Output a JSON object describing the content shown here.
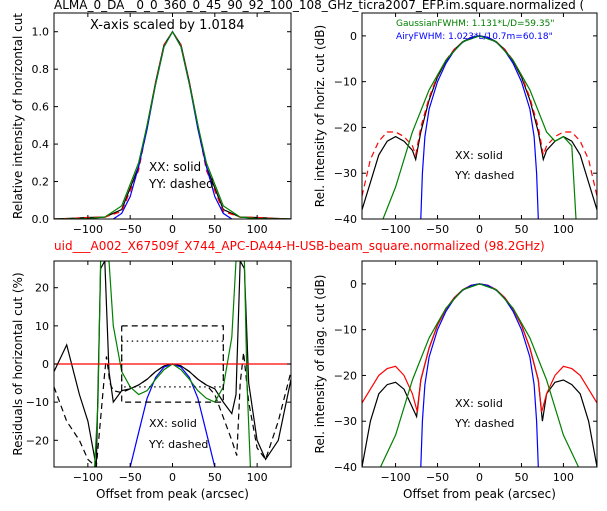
{
  "page_title": "ALMA_0_DA__0_0_360_0_45_90_92_100_108_GHz_ticra2007_EFP.im.square.normalized (",
  "subtitle": "uid___A002_X67509f_X744_APC-DA44-H-USB-beam_square.normalized (98.2GHz)",
  "colors": {
    "black": "#000000",
    "red": "#ff0000",
    "blue": "#0000ff",
    "green": "#008000"
  },
  "chart_data": [
    {
      "id": "p1",
      "type": "line",
      "xlim": [
        -140,
        140
      ],
      "ylim": [
        0,
        1.1
      ],
      "xticks": [
        -100,
        -50,
        0,
        50,
        100
      ],
      "xtick_labels": [
        "−100",
        "−50",
        "0",
        "50",
        "100"
      ],
      "yticks": [
        0.0,
        0.2,
        0.4,
        0.6,
        0.8,
        1.0
      ],
      "ytick_labels": [
        "0.0",
        "0.2",
        "0.4",
        "0.6",
        "0.8",
        "1.0"
      ],
      "ylabel": "Relative intensity of horizontal cut",
      "xlabel": "",
      "annotations": [
        "X-axis scaled by 1.0184",
        "XX: solid",
        "YY: dashed"
      ],
      "series": [
        {
          "color": "#000000",
          "style": "solid",
          "x": [
            -140,
            -120,
            -100,
            -80,
            -60,
            -40,
            -30,
            -20,
            -10,
            0,
            10,
            20,
            30,
            40,
            60,
            80,
            100,
            120,
            140
          ],
          "y": [
            0,
            0.003,
            0.008,
            0.01,
            0.05,
            0.28,
            0.5,
            0.73,
            0.93,
            1.0,
            0.93,
            0.73,
            0.5,
            0.28,
            0.05,
            0.01,
            0.008,
            0.003,
            0
          ]
        },
        {
          "color": "#ff0000",
          "style": "dashed",
          "x": [
            -140,
            -120,
            -100,
            -80,
            -60,
            -40,
            -30,
            -20,
            -10,
            0,
            10,
            20,
            30,
            40,
            60,
            80,
            100,
            120,
            140
          ],
          "y": [
            0,
            0.003,
            0.008,
            0.01,
            0.04,
            0.26,
            0.49,
            0.73,
            0.93,
            1.0,
            0.93,
            0.73,
            0.49,
            0.26,
            0.04,
            0.01,
            0.008,
            0.003,
            0
          ]
        },
        {
          "color": "#0000ff",
          "style": "solid",
          "x": [
            -70,
            -60,
            -50,
            -40,
            -30,
            -20,
            -10,
            0,
            10,
            20,
            30,
            40,
            50,
            60,
            70
          ],
          "y": [
            0.0,
            0.03,
            0.12,
            0.28,
            0.48,
            0.72,
            0.92,
            1.0,
            0.92,
            0.72,
            0.48,
            0.28,
            0.12,
            0.03,
            0.0
          ]
        },
        {
          "color": "#008000",
          "style": "solid",
          "x": [
            -140,
            -100,
            -80,
            -60,
            -40,
            -30,
            -20,
            -10,
            0,
            10,
            20,
            30,
            40,
            60,
            80,
            100,
            140
          ],
          "y": [
            0,
            0.002,
            0.01,
            0.07,
            0.3,
            0.5,
            0.72,
            0.92,
            1.0,
            0.92,
            0.72,
            0.5,
            0.3,
            0.07,
            0.01,
            0.002,
            0
          ]
        }
      ]
    },
    {
      "id": "p2",
      "type": "line",
      "xlim": [
        -140,
        140
      ],
      "ylim": [
        -40,
        5
      ],
      "xticks": [
        -100,
        -50,
        0,
        50,
        100
      ],
      "xtick_labels": [
        "−100",
        "−50",
        "0",
        "50",
        "100"
      ],
      "yticks": [
        -40,
        -30,
        -20,
        -10,
        0
      ],
      "ytick_labels": [
        "−40",
        "−30",
        "−20",
        "−10",
        "0"
      ],
      "ylabel": "Rel. intensity of horiz. cut (dB)",
      "xlabel": "",
      "annotations": [
        "GaussianFWHM: 1.131*L/D=59.35\"",
        "AiryFWHM: 1.023*L/10.7m=60.18\"",
        "XX: solid",
        "YY: dashed"
      ],
      "series": [
        {
          "color": "#000000",
          "style": "solid",
          "x": [
            -140,
            -130,
            -120,
            -110,
            -100,
            -90,
            -80,
            -76,
            -70,
            -60,
            -50,
            -40,
            -30,
            -20,
            -10,
            0,
            10,
            20,
            30,
            40,
            50,
            60,
            70,
            76,
            80,
            90,
            100,
            110,
            120,
            130,
            140
          ],
          "y": [
            -38,
            -32,
            -26,
            -23,
            -22,
            -23,
            -25,
            -27,
            -21,
            -14,
            -9,
            -5.5,
            -3,
            -1.3,
            -0.3,
            0,
            -0.3,
            -1.3,
            -3,
            -5.5,
            -9,
            -14,
            -21,
            -27,
            -25,
            -23,
            -22,
            -23,
            -26,
            -32,
            -38
          ]
        },
        {
          "color": "#ff0000",
          "style": "dashed",
          "x": [
            -140,
            -130,
            -120,
            -110,
            -100,
            -90,
            -80,
            -76,
            -70,
            -60,
            -50,
            -40,
            -30,
            -20,
            -10,
            0,
            10,
            20,
            30,
            40,
            50,
            60,
            70,
            76,
            80,
            90,
            100,
            110,
            120,
            130,
            140
          ],
          "y": [
            -35,
            -27,
            -23,
            -21,
            -21,
            -22,
            -24,
            -26,
            -20,
            -13.5,
            -8.7,
            -5.3,
            -2.9,
            -1.3,
            -0.3,
            0,
            -0.3,
            -1.3,
            -2.9,
            -5.3,
            -8.7,
            -13.5,
            -20,
            -26,
            -24,
            -22,
            -21,
            -21,
            -23,
            -27,
            -35
          ]
        },
        {
          "color": "#0000ff",
          "style": "solid",
          "x": [
            -70,
            -68,
            -65,
            -60,
            -50,
            -40,
            -30,
            -20,
            -10,
            0,
            10,
            20,
            30,
            40,
            50,
            60,
            65,
            68,
            70
          ],
          "y": [
            -40,
            -30,
            -22,
            -16,
            -10,
            -6,
            -3.2,
            -1.4,
            -0.35,
            0,
            -0.35,
            -1.4,
            -3.2,
            -6,
            -10,
            -16,
            -22,
            -30,
            -40
          ]
        },
        {
          "color": "#008000",
          "style": "solid",
          "x": [
            -115,
            -100,
            -80,
            -60,
            -40,
            -20,
            0,
            20,
            40,
            60,
            80,
            90,
            100,
            110,
            115
          ],
          "y": [
            -40,
            -33,
            -21,
            -11.8,
            -5.3,
            -1.3,
            0,
            -1.3,
            -5.3,
            -11.8,
            -21,
            -23,
            -22,
            -24,
            -40
          ]
        }
      ]
    },
    {
      "id": "p3",
      "type": "line",
      "xlim": [
        -140,
        140
      ],
      "ylim": [
        -27,
        27
      ],
      "xticks": [
        -100,
        -50,
        0,
        50,
        100
      ],
      "xtick_labels": [
        "−100",
        "−50",
        "0",
        "50",
        "100"
      ],
      "yticks": [
        -20,
        -10,
        0,
        10,
        20
      ],
      "ytick_labels": [
        "−20",
        "−10",
        "0",
        "10",
        "20"
      ],
      "ylabel": "Residuals of horizontal cut (%)",
      "xlabel": "Offset from peak (arcsec)",
      "annotations": [
        "XX: solid",
        "YY: dashed"
      ],
      "series": [
        {
          "color": "#000000",
          "style": "solid",
          "x": [
            -140,
            -125,
            -110,
            -100,
            -90,
            -85,
            -80,
            -75,
            -70,
            -60,
            -50,
            -40,
            -30,
            -20,
            -10,
            0,
            10,
            20,
            30,
            40,
            50,
            60,
            70,
            75,
            80,
            85,
            90,
            100,
            110,
            125,
            140
          ],
          "y": [
            -2,
            5,
            -8,
            -15,
            -27,
            25,
            27,
            -2,
            -10,
            -7,
            -6.5,
            -5.5,
            -4,
            -2,
            -0.5,
            0,
            -0.5,
            -2,
            -4,
            -5.5,
            -6.5,
            -10,
            -13,
            -8,
            27,
            25,
            -5,
            -20,
            -25,
            -20,
            -4
          ]
        },
        {
          "color": "#000000",
          "style": "dashed",
          "x": [
            -140,
            -125,
            -110,
            -100,
            -90,
            -80,
            -78,
            -74,
            -70,
            -60,
            -50,
            -40,
            -30,
            -20,
            -10,
            0,
            10,
            20,
            30,
            40,
            50,
            60,
            70,
            76,
            80,
            84,
            90,
            100,
            110,
            125,
            140
          ],
          "y": [
            -6,
            -15,
            -20,
            -25,
            -27,
            -2,
            2,
            -5,
            -7,
            -7.5,
            -6.5,
            -5.5,
            -4,
            -2,
            -0.5,
            0,
            -0.5,
            -2,
            -4,
            -5.5,
            -8,
            -14,
            -20,
            -24,
            -5,
            3,
            -10,
            -22,
            -25,
            -15,
            -2
          ]
        },
        {
          "color": "#0000ff",
          "style": "solid",
          "x": [
            -50,
            -40,
            -30,
            -20,
            -10,
            0,
            10,
            20,
            30,
            40,
            50
          ],
          "y": [
            -27,
            -18,
            -9,
            -3.5,
            -0.8,
            0,
            -0.8,
            -3.5,
            -9,
            -18,
            -27
          ]
        },
        {
          "color": "#008000",
          "style": "solid",
          "x": [
            -92,
            -88,
            -85,
            -80,
            -75,
            -70,
            -60,
            -50,
            -40,
            -30,
            -20,
            -10,
            0,
            10,
            20,
            30,
            40,
            50,
            60,
            70,
            75,
            80,
            85,
            88,
            92
          ],
          "y": [
            -27,
            -10,
            27,
            27,
            27,
            10,
            -2,
            -6,
            -8,
            -7,
            -4,
            -1.5,
            0,
            -1.5,
            -4,
            -7,
            -9,
            -10,
            -6,
            7,
            27,
            27,
            27,
            -5,
            -27
          ]
        },
        {
          "color": "#ff0000",
          "style": "solid",
          "x": [
            -140,
            140
          ],
          "y": [
            0,
            0
          ]
        },
        {
          "color": "#000000",
          "style": "dashed",
          "x": [
            -60,
            60,
            60,
            -60,
            -60
          ],
          "y": [
            10,
            10,
            -10,
            -10,
            10
          ]
        },
        {
          "color": "#000000",
          "style": "dotted",
          "x": [
            -60,
            60,
            60,
            -60,
            -60
          ],
          "y": [
            6,
            6,
            -6,
            -6,
            6
          ]
        }
      ]
    },
    {
      "id": "p4",
      "type": "line",
      "xlim": [
        -140,
        140
      ],
      "ylim": [
        -40,
        5
      ],
      "xticks": [
        -100,
        -50,
        0,
        50,
        100
      ],
      "xtick_labels": [
        "−100",
        "−50",
        "0",
        "50",
        "100"
      ],
      "yticks": [
        -40,
        -30,
        -20,
        -10,
        0
      ],
      "ytick_labels": [
        "−40",
        "−30",
        "−20",
        "−10",
        "0"
      ],
      "ylabel": "Rel. intensity of diag. cut (dB)",
      "xlabel": "Offset from peak (arcsec)",
      "annotations": [
        "XX: solid",
        "YY: dashed"
      ],
      "series": [
        {
          "color": "#000000",
          "style": "solid",
          "x": [
            -140,
            -130,
            -120,
            -110,
            -100,
            -90,
            -80,
            -75,
            -70,
            -60,
            -50,
            -40,
            -30,
            -20,
            -10,
            0,
            10,
            20,
            30,
            40,
            50,
            60,
            70,
            75,
            80,
            90,
            100,
            110,
            120,
            130,
            140
          ],
          "y": [
            -40,
            -30,
            -24,
            -22,
            -21.5,
            -23,
            -27,
            -29,
            -21,
            -14,
            -9,
            -5.5,
            -3,
            -1.3,
            -0.3,
            0,
            -0.3,
            -1.3,
            -3,
            -5.5,
            -9,
            -14,
            -21,
            -30,
            -24,
            -21.5,
            -21,
            -22,
            -24,
            -30,
            -40
          ]
        },
        {
          "color": "#ff0000",
          "style": "solid",
          "x": [
            -140,
            -130,
            -120,
            -110,
            -100,
            -90,
            -80,
            -74,
            -70,
            -60,
            -50,
            -40,
            -30,
            -20,
            -10,
            0,
            10,
            20,
            30,
            40,
            50,
            60,
            70,
            74,
            80,
            90,
            100,
            110,
            120,
            130,
            140
          ],
          "y": [
            -26,
            -23,
            -20,
            -18.5,
            -18,
            -20,
            -24,
            -28,
            -21,
            -14,
            -9,
            -5.5,
            -3,
            -1.3,
            -0.3,
            0,
            -0.3,
            -1.3,
            -3,
            -5.5,
            -9,
            -14,
            -21,
            -28,
            -24,
            -20,
            -18,
            -18.5,
            -20,
            -23,
            -26
          ]
        },
        {
          "color": "#0000ff",
          "style": "solid",
          "x": [
            -70,
            -68,
            -65,
            -60,
            -50,
            -40,
            -30,
            -20,
            -10,
            0,
            10,
            20,
            30,
            40,
            50,
            60,
            65,
            68,
            70
          ],
          "y": [
            -40,
            -30,
            -22,
            -16,
            -10,
            -6,
            -3.2,
            -1.4,
            -0.35,
            0,
            -0.35,
            -1.4,
            -3.2,
            -6,
            -10,
            -16,
            -22,
            -30,
            -40
          ]
        },
        {
          "color": "#008000",
          "style": "solid",
          "x": [
            -118,
            -100,
            -80,
            -60,
            -40,
            -20,
            0,
            20,
            40,
            60,
            80,
            100,
            118
          ],
          "y": [
            -40,
            -33,
            -21,
            -11.8,
            -5.3,
            -1.3,
            0,
            -1.3,
            -5.3,
            -11.8,
            -21,
            -33,
            -40
          ]
        }
      ]
    }
  ]
}
